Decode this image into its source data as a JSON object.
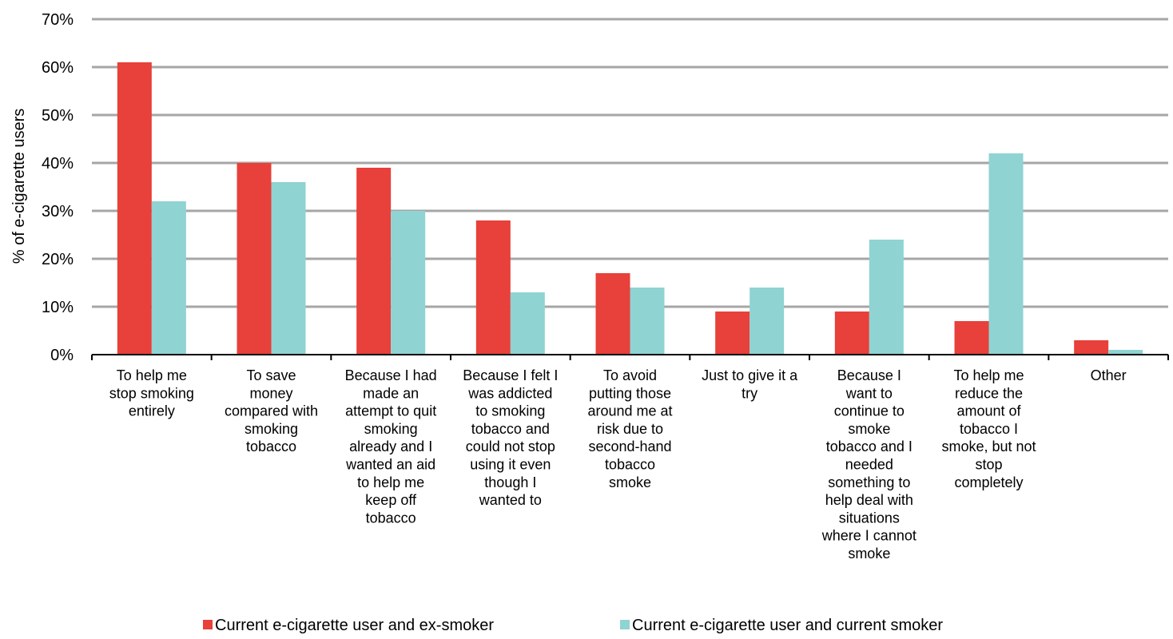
{
  "chart_data": {
    "type": "bar",
    "title": "",
    "xlabel": "",
    "ylabel": "% of e-cigarette users",
    "ylim": [
      0,
      70
    ],
    "yticks": [
      0,
      10,
      20,
      30,
      40,
      50,
      60,
      70
    ],
    "ytick_labels": [
      "0%",
      "10%",
      "20%",
      "30%",
      "40%",
      "50%",
      "60%",
      "70%"
    ],
    "grid": true,
    "legend_position": "bottom",
    "categories": [
      [
        "To help me",
        "stop smoking",
        "entirely"
      ],
      [
        "To save",
        "money",
        "compared with",
        "smoking",
        "tobacco"
      ],
      [
        "Because I had",
        "made an",
        "attempt to quit",
        "smoking",
        "already and I",
        "wanted an aid",
        "to help me",
        "keep off",
        "tobacco"
      ],
      [
        "Because I felt I",
        "was addicted",
        "to smoking",
        "tobacco and",
        "could not stop",
        "using it even",
        "though I",
        "wanted to"
      ],
      [
        "To avoid",
        "putting those",
        "around me at",
        "risk due to",
        "second-hand",
        "tobacco",
        "smoke"
      ],
      [
        "Just to give it a",
        "try"
      ],
      [
        "Because I",
        "want to",
        "continue to",
        "smoke",
        "tobacco and I",
        "needed",
        "something to",
        "help deal with",
        "situations",
        "where I cannot",
        "smoke"
      ],
      [
        "To help me",
        "reduce the",
        "amount of",
        "tobacco I",
        "smoke, but not",
        "stop",
        "completely"
      ],
      [
        "Other"
      ]
    ],
    "series": [
      {
        "name": "Current e-cigarette user and ex-smoker",
        "color": "#e8403a",
        "values": [
          61,
          40,
          39,
          28,
          17,
          9,
          9,
          7,
          3
        ]
      },
      {
        "name": "Current e-cigarette user and current smoker",
        "color": "#8fd3d3",
        "values": [
          32,
          36,
          30,
          13,
          14,
          14,
          24,
          42,
          1
        ]
      }
    ],
    "colors": {
      "grid": "#a6a6a6",
      "axis": "#000000"
    }
  }
}
